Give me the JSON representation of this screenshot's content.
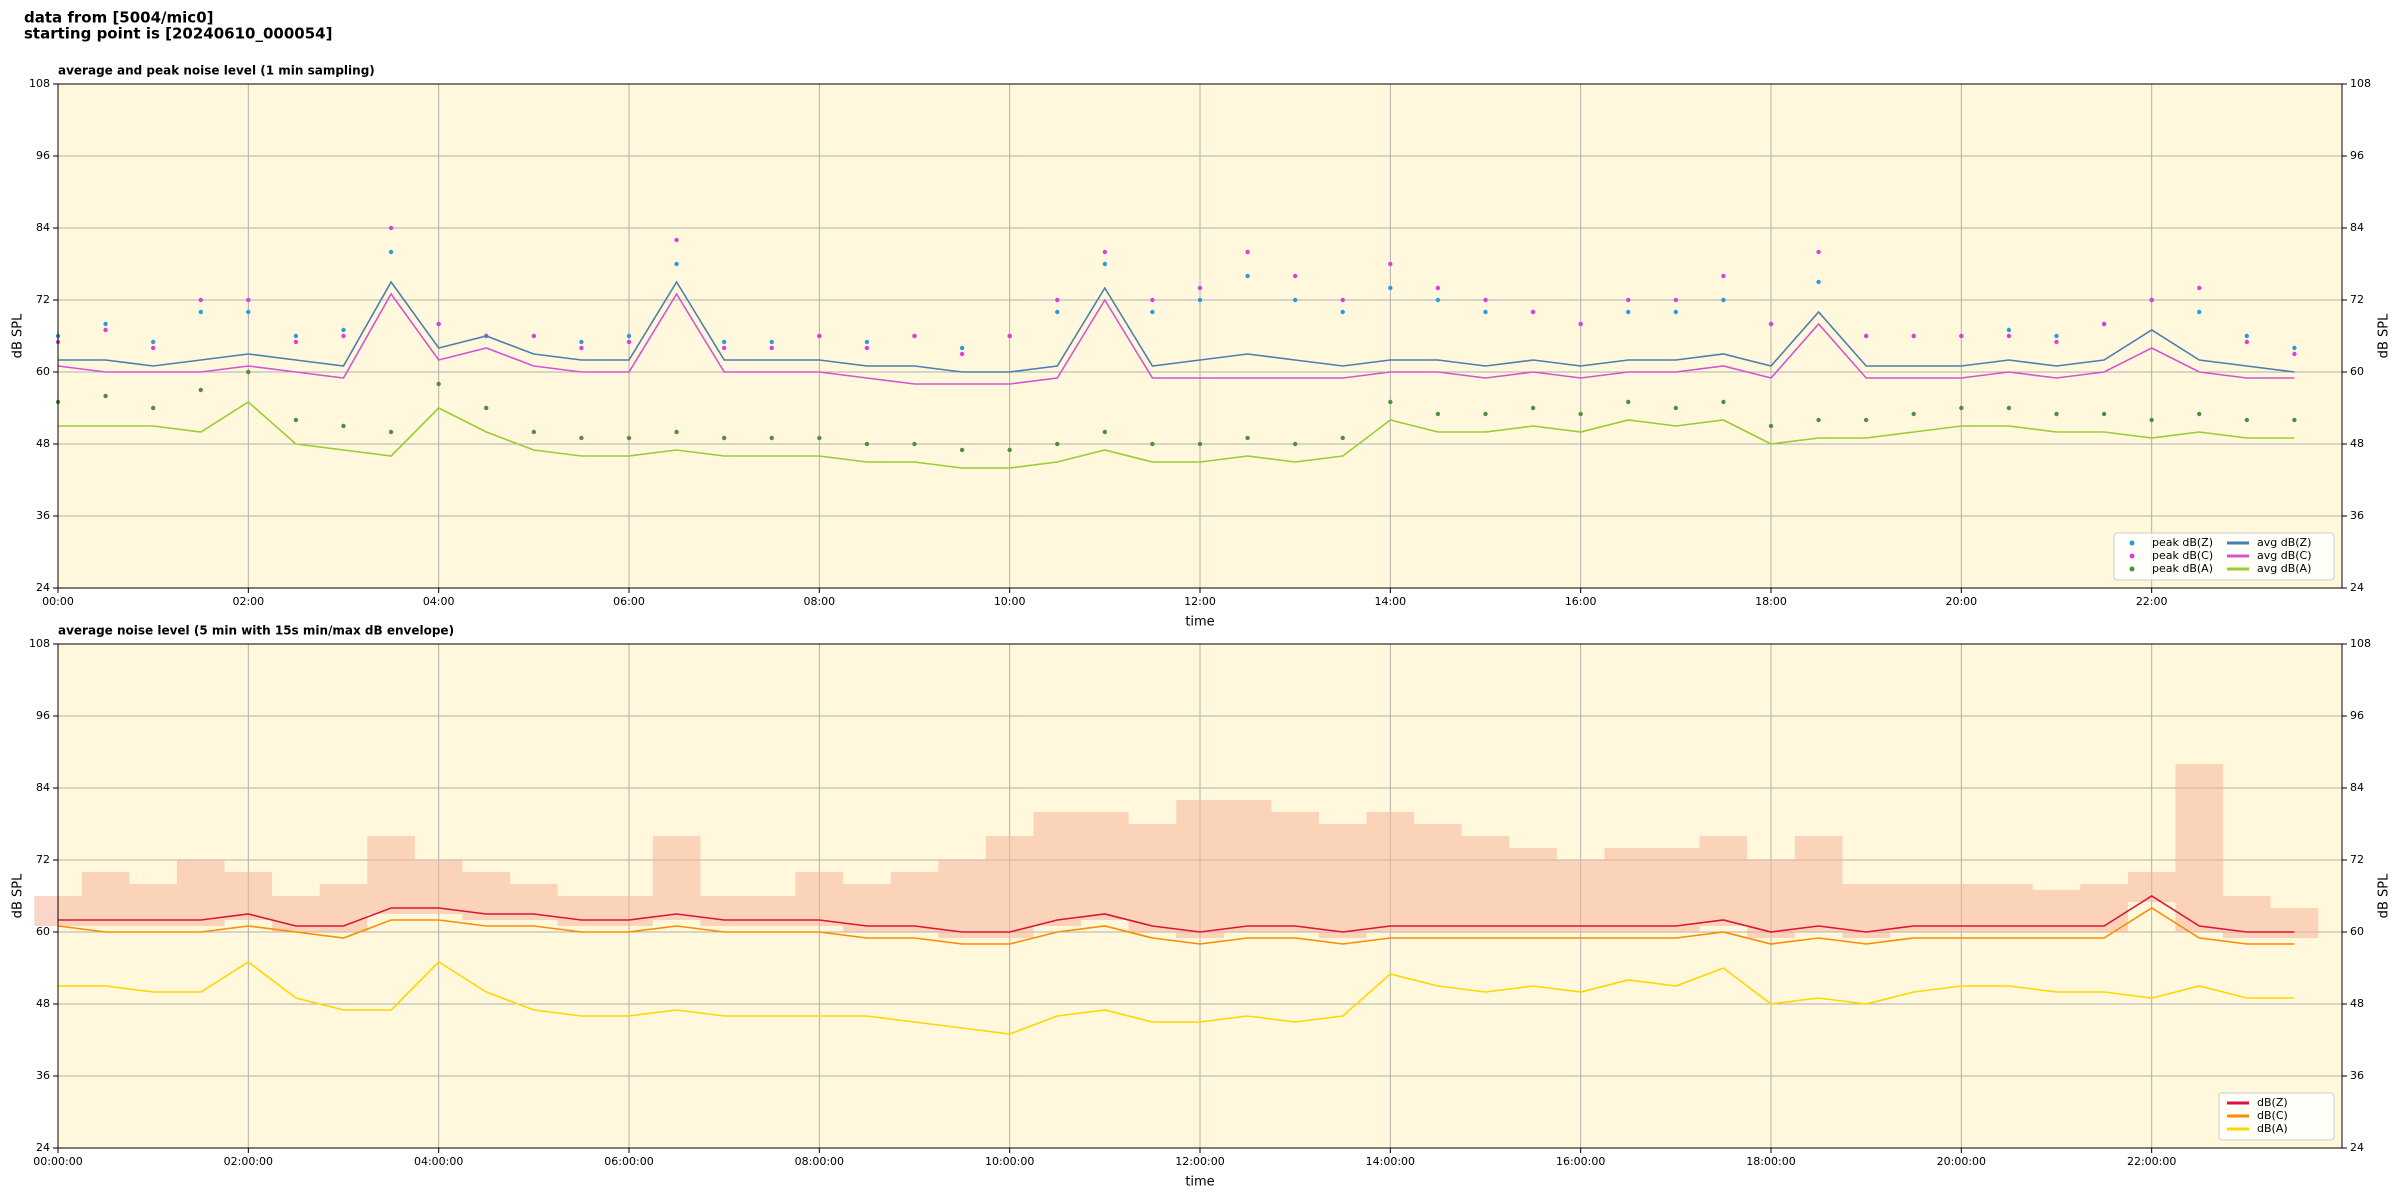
{
  "page_title": [
    "data from [5004/mic0]",
    "starting point is [20240610_000054]"
  ],
  "chart_data": [
    {
      "type": "line",
      "title": "average and peak noise level (1 min sampling)",
      "xlabel": "time",
      "ylabel": "dB SPL",
      "x": [
        0,
        0.5,
        1,
        1.5,
        2,
        2.5,
        3,
        3.5,
        4,
        4.5,
        5,
        5.5,
        6,
        6.5,
        7,
        7.5,
        8,
        8.5,
        9,
        9.5,
        10,
        10.5,
        11,
        11.5,
        12,
        12.5,
        13,
        13.5,
        14,
        14.5,
        15,
        15.5,
        16,
        16.5,
        17,
        17.5,
        18,
        18.5,
        19,
        19.5,
        20,
        20.5,
        21,
        21.5,
        22,
        22.5,
        23,
        23.5
      ],
      "xlim": [
        0,
        24
      ],
      "xticks": [
        {
          "value": 0,
          "label": "00:00"
        },
        {
          "value": 2,
          "label": "02:00"
        },
        {
          "value": 4,
          "label": "04:00"
        },
        {
          "value": 6,
          "label": "06:00"
        },
        {
          "value": 8,
          "label": "08:00"
        },
        {
          "value": 10,
          "label": "10:00"
        },
        {
          "value": 12,
          "label": "12:00"
        },
        {
          "value": 14,
          "label": "14:00"
        },
        {
          "value": 16,
          "label": "16:00"
        },
        {
          "value": 18,
          "label": "18:00"
        },
        {
          "value": 20,
          "label": "20:00"
        },
        {
          "value": 22,
          "label": "22:00"
        }
      ],
      "ylim": [
        24,
        108
      ],
      "yticks": [
        24,
        36,
        48,
        60,
        72,
        84,
        96,
        108
      ],
      "grid": true,
      "legend": "lower right",
      "legend_columns": 2,
      "series": [
        {
          "name": "peak dB(Z)",
          "kind": "points",
          "color": "#2b9be0",
          "values": [
            66,
            68,
            65,
            70,
            70,
            66,
            67,
            80,
            68,
            66,
            66,
            65,
            66,
            78,
            65,
            65,
            66,
            65,
            66,
            64,
            66,
            70,
            78,
            70,
            72,
            76,
            72,
            70,
            74,
            72,
            70,
            70,
            68,
            70,
            70,
            72,
            68,
            75,
            66,
            66,
            66,
            67,
            66,
            68,
            72,
            70,
            66,
            64
          ]
        },
        {
          "name": "peak dB(C)",
          "kind": "points",
          "color": "#e03ce0",
          "values": [
            65,
            67,
            64,
            72,
            72,
            65,
            66,
            84,
            68,
            66,
            66,
            64,
            65,
            82,
            64,
            64,
            66,
            64,
            66,
            63,
            66,
            72,
            80,
            72,
            74,
            80,
            76,
            72,
            78,
            74,
            72,
            70,
            68,
            72,
            72,
            76,
            68,
            80,
            66,
            66,
            66,
            66,
            65,
            68,
            72,
            74,
            65,
            63
          ]
        },
        {
          "name": "peak dB(A)",
          "kind": "points",
          "color": "#4f8f3a",
          "values": [
            55,
            56,
            54,
            57,
            60,
            52,
            51,
            50,
            58,
            54,
            50,
            49,
            49,
            50,
            49,
            49,
            49,
            48,
            48,
            47,
            47,
            48,
            50,
            48,
            48,
            49,
            48,
            49,
            55,
            53,
            53,
            54,
            53,
            55,
            54,
            55,
            51,
            52,
            52,
            53,
            54,
            54,
            53,
            53,
            52,
            53,
            52,
            52
          ]
        },
        {
          "name": "avg dB(Z)",
          "kind": "line",
          "color": "#4a7fb0",
          "values": [
            62,
            62,
            61,
            62,
            63,
            62,
            61,
            75,
            64,
            66,
            63,
            62,
            62,
            75,
            62,
            62,
            62,
            61,
            61,
            60,
            60,
            61,
            74,
            61,
            62,
            63,
            62,
            61,
            62,
            62,
            61,
            62,
            61,
            62,
            62,
            63,
            61,
            70,
            61,
            61,
            61,
            62,
            61,
            62,
            67,
            62,
            61,
            60
          ]
        },
        {
          "name": "avg dB(C)",
          "kind": "line",
          "color": "#d455d4",
          "values": [
            61,
            60,
            60,
            60,
            61,
            60,
            59,
            73,
            62,
            64,
            61,
            60,
            60,
            73,
            60,
            60,
            60,
            59,
            58,
            58,
            58,
            59,
            72,
            59,
            59,
            59,
            59,
            59,
            60,
            60,
            59,
            60,
            59,
            60,
            60,
            61,
            59,
            68,
            59,
            59,
            59,
            60,
            59,
            60,
            64,
            60,
            59,
            59
          ]
        },
        {
          "name": "avg dB(A)",
          "kind": "line",
          "color": "#9acd32",
          "values": [
            51,
            51,
            51,
            50,
            55,
            48,
            47,
            46,
            54,
            50,
            47,
            46,
            46,
            47,
            46,
            46,
            46,
            45,
            45,
            44,
            44,
            45,
            47,
            45,
            45,
            46,
            45,
            46,
            52,
            50,
            50,
            51,
            50,
            52,
            51,
            52,
            48,
            49,
            49,
            50,
            51,
            51,
            50,
            50,
            49,
            50,
            49,
            49
          ]
        }
      ]
    },
    {
      "type": "line",
      "title": "average noise level (5 min with 15s min/max dB envelope)",
      "xlabel": "time",
      "ylabel": "dB SPL",
      "x": [
        0,
        0.5,
        1,
        1.5,
        2,
        2.5,
        3,
        3.5,
        4,
        4.5,
        5,
        5.5,
        6,
        6.5,
        7,
        7.5,
        8,
        8.5,
        9,
        9.5,
        10,
        10.5,
        11,
        11.5,
        12,
        12.5,
        13,
        13.5,
        14,
        14.5,
        15,
        15.5,
        16,
        16.5,
        17,
        17.5,
        18,
        18.5,
        19,
        19.5,
        20,
        20.5,
        21,
        21.5,
        22,
        22.5,
        23,
        23.5
      ],
      "xlim": [
        0,
        24
      ],
      "xticks": [
        {
          "value": 0,
          "label": "00:00:00"
        },
        {
          "value": 2,
          "label": "02:00:00"
        },
        {
          "value": 4,
          "label": "04:00:00"
        },
        {
          "value": 6,
          "label": "06:00:00"
        },
        {
          "value": 8,
          "label": "08:00:00"
        },
        {
          "value": 10,
          "label": "10:00:00"
        },
        {
          "value": 12,
          "label": "12:00:00"
        },
        {
          "value": 14,
          "label": "14:00:00"
        },
        {
          "value": 16,
          "label": "16:00:00"
        },
        {
          "value": 18,
          "label": "18:00:00"
        },
        {
          "value": 20,
          "label": "20:00:00"
        },
        {
          "value": 22,
          "label": "22:00:00"
        }
      ],
      "ylim": [
        24,
        108
      ],
      "yticks": [
        24,
        36,
        48,
        60,
        72,
        84,
        96,
        108
      ],
      "grid": true,
      "legend": "lower right",
      "legend_columns": 1,
      "envelope": {
        "color": "#f5b49c",
        "high": [
          66,
          70,
          68,
          72,
          70,
          66,
          68,
          76,
          72,
          70,
          68,
          66,
          66,
          76,
          66,
          66,
          70,
          68,
          70,
          72,
          76,
          80,
          80,
          78,
          82,
          82,
          80,
          78,
          80,
          78,
          76,
          74,
          72,
          74,
          74,
          76,
          72,
          76,
          68,
          68,
          68,
          68,
          67,
          68,
          70,
          88,
          66,
          64
        ],
        "low": [
          61,
          61,
          61,
          61,
          62,
          60,
          60,
          63,
          63,
          62,
          62,
          61,
          61,
          62,
          61,
          61,
          61,
          60,
          60,
          59,
          59,
          61,
          62,
          60,
          59,
          60,
          60,
          59,
          60,
          60,
          60,
          60,
          60,
          60,
          60,
          61,
          59,
          60,
          59,
          60,
          60,
          60,
          60,
          60,
          65,
          60,
          59,
          59
        ]
      },
      "series": [
        {
          "name": "dB(Z)",
          "kind": "line",
          "color": "#dc143c",
          "values": [
            62,
            62,
            62,
            62,
            63,
            61,
            61,
            64,
            64,
            63,
            63,
            62,
            62,
            63,
            62,
            62,
            62,
            61,
            61,
            60,
            60,
            62,
            63,
            61,
            60,
            61,
            61,
            60,
            61,
            61,
            61,
            61,
            61,
            61,
            61,
            62,
            60,
            61,
            60,
            61,
            61,
            61,
            61,
            61,
            66,
            61,
            60,
            60
          ]
        },
        {
          "name": "dB(C)",
          "kind": "line",
          "color": "#ff8c00",
          "values": [
            61,
            60,
            60,
            60,
            61,
            60,
            59,
            62,
            62,
            61,
            61,
            60,
            60,
            61,
            60,
            60,
            60,
            59,
            59,
            58,
            58,
            60,
            61,
            59,
            58,
            59,
            59,
            58,
            59,
            59,
            59,
            59,
            59,
            59,
            59,
            60,
            58,
            59,
            58,
            59,
            59,
            59,
            59,
            59,
            64,
            59,
            58,
            58
          ]
        },
        {
          "name": "dB(A)",
          "kind": "line",
          "color": "#ffd700",
          "values": [
            51,
            51,
            50,
            50,
            55,
            49,
            47,
            47,
            55,
            50,
            47,
            46,
            46,
            47,
            46,
            46,
            46,
            46,
            45,
            44,
            43,
            46,
            47,
            45,
            45,
            46,
            45,
            46,
            53,
            51,
            50,
            51,
            50,
            52,
            51,
            54,
            48,
            49,
            48,
            50,
            51,
            51,
            50,
            50,
            49,
            51,
            49,
            49
          ]
        }
      ]
    }
  ]
}
